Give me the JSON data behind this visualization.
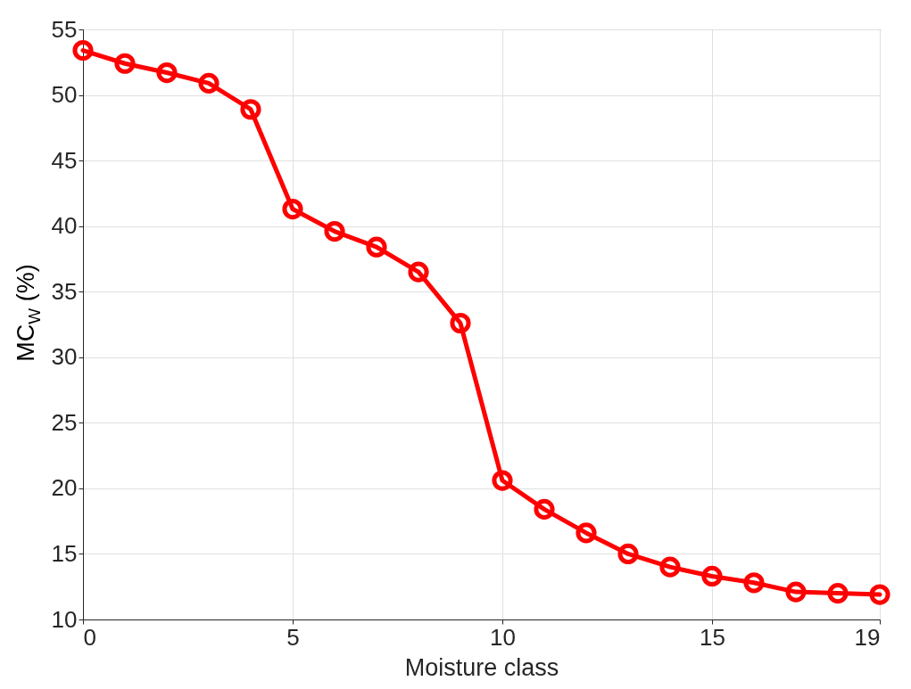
{
  "chart_data": {
    "type": "line",
    "xlabel": "Moisture class",
    "ylabel": "MC$_{W}$ (%)",
    "x": [
      0,
      1,
      2,
      3,
      4,
      5,
      6,
      7,
      8,
      9,
      10,
      11,
      12,
      13,
      14,
      15,
      16,
      17,
      18,
      19
    ],
    "series": [
      {
        "color": "#ff0000",
        "values": [
          53.4,
          52.4,
          51.7,
          50.9,
          48.9,
          41.3,
          39.6,
          38.4,
          36.5,
          32.6,
          20.6,
          18.4,
          16.6,
          15.0,
          14.0,
          13.3,
          12.8,
          12.1,
          12.0,
          11.9
        ]
      }
    ],
    "xlim": [
      0,
      19
    ],
    "xticks": [
      0,
      5,
      10,
      15,
      19
    ],
    "ylim": [
      10,
      55
    ],
    "yticks": [
      10,
      15,
      20,
      25,
      30,
      35,
      40,
      45,
      50,
      55
    ],
    "grid": true,
    "marker": "circle",
    "line_style": "solid"
  }
}
